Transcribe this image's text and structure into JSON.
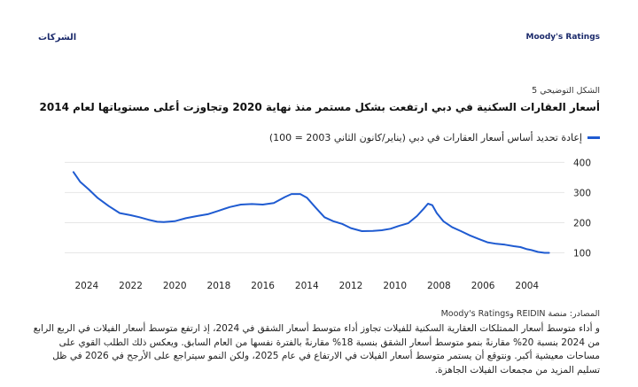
{
  "header": {
    "left": "الشركات",
    "right": "Moody's Ratings"
  },
  "figure": {
    "label": "الشكل التوضيحي 5",
    "title": "أسعار العقارات السكنية في دبي ارتفعت بشكل مستمر منذ نهاية 2020 وتجاوزت أعلى مستوياتها لعام 2014",
    "legend": "إعادة تحديد أساس أسعار العقارات في دبي (يناير/كانون الثاني 2003 = 100)",
    "source": "المصادر: منصة REIDIN وMoody's Ratings"
  },
  "paragraph": "و أداء متوسط أسعار الممتلكات العقارية السكنية للفيلات تجاوز أداء متوسط أسعار الشقق في 2024، إذ ارتفع متوسط أسعار الفيلات في الربع الرابع من 2024 بنسبة 20% مقارنةً بنمو متوسط أسعار الشقق بنسبة 18% مقارنةً بالفترة نفسها من العام السابق. ويعكس ذلك الطلب القوي على مساحات معيشية أكبر. ونتوقع أن يستمر متوسط أسعار الفيلات في الارتفاع في عام 2025، ولكن النمو سيتراجع على الأرجح في 2026 في ظل تسليم المزيد من مجمعات الفيلات الجاهزة.",
  "chart_data": {
    "type": "line",
    "x_reversed": true,
    "xlim": [
      2002.3,
      2025.0
    ],
    "ylim": [
      75,
      410
    ],
    "yticks": [
      100,
      200,
      300,
      400
    ],
    "xticks": [
      2004,
      2006,
      2008,
      2010,
      2012,
      2014,
      2016,
      2018,
      2020,
      2022,
      2024
    ],
    "series": [
      {
        "color": "#1f5bd1",
        "x": [
          2003.0,
          2003.2,
          2003.5,
          2003.8,
          2004.0,
          2004.3,
          2004.6,
          2005.0,
          2005.4,
          2005.8,
          2006.2,
          2006.6,
          2007.0,
          2007.4,
          2007.8,
          2008.1,
          2008.3,
          2008.5,
          2008.7,
          2009.0,
          2009.4,
          2009.8,
          2010.2,
          2010.6,
          2011.0,
          2011.5,
          2012.0,
          2012.4,
          2012.8,
          2013.2,
          2013.6,
          2014.0,
          2014.3,
          2014.7,
          2015.0,
          2015.5,
          2016.0,
          2016.5,
          2017.0,
          2017.5,
          2018.0,
          2018.5,
          2019.0,
          2019.5,
          2020.0,
          2020.5,
          2020.8,
          2021.2,
          2021.6,
          2022.0,
          2022.5,
          2023.0,
          2023.5,
          2023.9,
          2024.3,
          2024.6
        ],
        "y": [
          100,
          100,
          103,
          109,
          112,
          119,
          122,
          127,
          130,
          135,
          146,
          158,
          172,
          185,
          205,
          232,
          258,
          263,
          246,
          222,
          198,
          190,
          180,
          175,
          173,
          172,
          182,
          196,
          205,
          218,
          250,
          283,
          295,
          295,
          285,
          265,
          260,
          262,
          260,
          252,
          240,
          228,
          222,
          215,
          205,
          202,
          203,
          210,
          218,
          225,
          232,
          255,
          282,
          310,
          336,
          368
        ]
      }
    ]
  }
}
